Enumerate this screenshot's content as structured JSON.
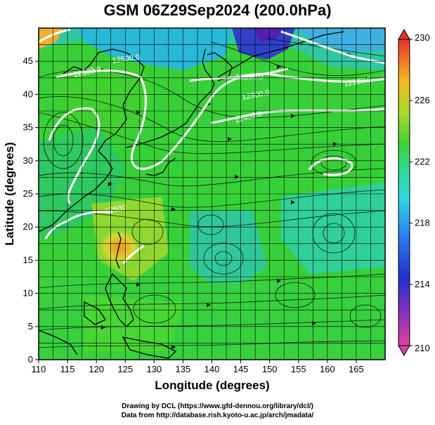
{
  "title": "GSM 06Z29Sep2024 (200.0hPa)",
  "x_axis": {
    "label": "Longitude (degrees)",
    "ticks": [
      "110",
      "115",
      "120",
      "125",
      "130",
      "135",
      "140",
      "145",
      "150",
      "155",
      "160",
      "165"
    ],
    "range": [
      110,
      170
    ]
  },
  "y_axis": {
    "label": "Latitude  (degrees)",
    "ticks": [
      "0",
      "5",
      "10",
      "15",
      "20",
      "25",
      "30",
      "35",
      "40",
      "45"
    ],
    "range": [
      0,
      50
    ]
  },
  "colorbar": {
    "labels": [
      "230",
      "226",
      "222",
      "218",
      "214",
      "210"
    ],
    "range": [
      210,
      230
    ],
    "colors": [
      "#e0409c",
      "#3020c8",
      "#2a8cf0",
      "#30d8d0",
      "#30c838",
      "#c8d830",
      "#f0a020",
      "#e84030"
    ]
  },
  "contour_labels": [
    "12500.0",
    "12500.0",
    "12200.0",
    "12300.0",
    "12100.0",
    "12400.0",
    "12500"
  ],
  "credits": {
    "line1": "Drawing by DCL (https://www.gfd-dennou.org/library/dcl/)",
    "line2": "Data from http://database.rish.kyoto-u.ac.jp/arch/jmadata/"
  }
}
